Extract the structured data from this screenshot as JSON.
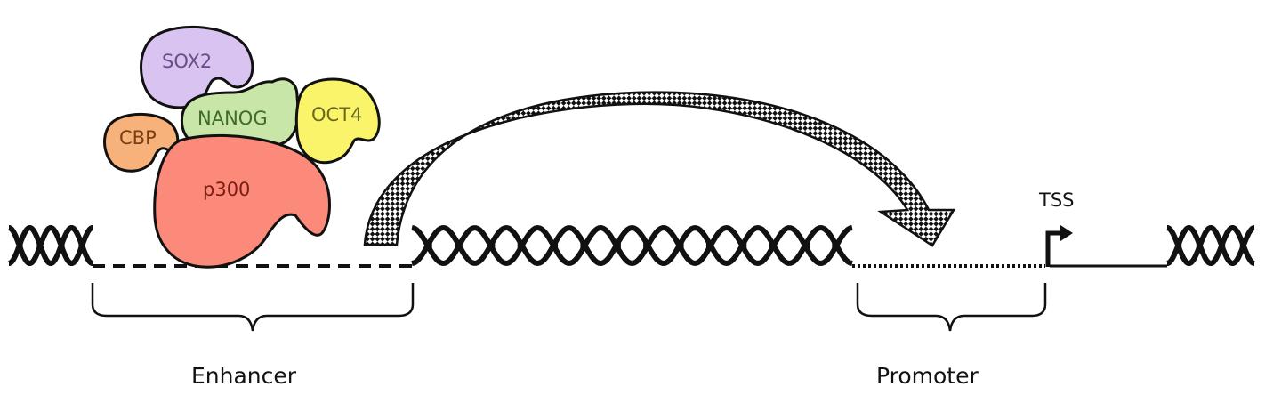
{
  "proteins": {
    "sox2": {
      "label": "SOX2",
      "fill": "#d9c3f0",
      "text": "#6a4e8a"
    },
    "nanog": {
      "label": "NANOG",
      "fill": "#c8e6a8",
      "text": "#3f6a2a"
    },
    "oct4": {
      "label": "OCT4",
      "fill": "#faf46a",
      "text": "#6b6a1c"
    },
    "cbp": {
      "label": "CBP",
      "fill": "#f6b27a",
      "text": "#7a3e12"
    },
    "p300": {
      "label": "p300",
      "fill": "#fb8a7a",
      "text": "#7a1e14"
    }
  },
  "regions": {
    "enhancer": "Enhancer",
    "promoter": "Promoter",
    "tss": "TSS"
  },
  "colors": {
    "dna": "#111111",
    "arrow_pattern": "checkerboard"
  }
}
